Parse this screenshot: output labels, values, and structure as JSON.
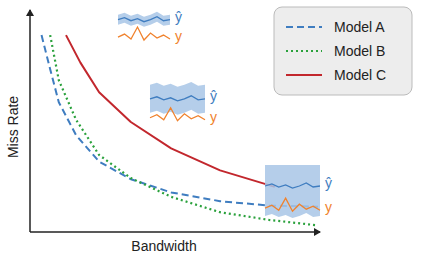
{
  "chart_data": {
    "type": "line",
    "x_label": "Bandwidth",
    "y_label": "Miss Rate",
    "xlim": [
      0,
      10
    ],
    "ylim": [
      0,
      10
    ],
    "tick_labels": false,
    "legend": "upper right",
    "series": [
      {
        "name": "Model A",
        "color": "#3f7dc0",
        "line_style": "dashed",
        "x": [
          0.4,
          0.7,
          1.0,
          1.6,
          2.4,
          3.5,
          4.9,
          6.6,
          8.3,
          10
        ],
        "values": [
          8.95,
          7.4,
          5.9,
          4.4,
          3.2,
          2.4,
          1.8,
          1.4,
          1.2,
          1.15
        ]
      },
      {
        "name": "Model B",
        "color": "#2aa13c",
        "line_style": "dotted",
        "x": [
          0.7,
          1.0,
          1.6,
          2.4,
          3.5,
          4.9,
          6.6,
          8.3,
          10
        ],
        "values": [
          8.95,
          6.9,
          5.1,
          3.5,
          2.45,
          1.6,
          0.9,
          0.55,
          0.3
        ]
      },
      {
        "name": "Model C",
        "color": "#c2272d",
        "line_style": "solid",
        "x": [
          1.25,
          1.75,
          2.4,
          3.5,
          4.9,
          6.6,
          8.5
        ],
        "values": [
          8.95,
          7.7,
          6.35,
          5.0,
          3.8,
          2.8,
          2.05
        ]
      }
    ],
    "annotations": [
      "ŷ",
      "y",
      "ŷ",
      "y",
      "ŷ",
      "y"
    ]
  }
}
